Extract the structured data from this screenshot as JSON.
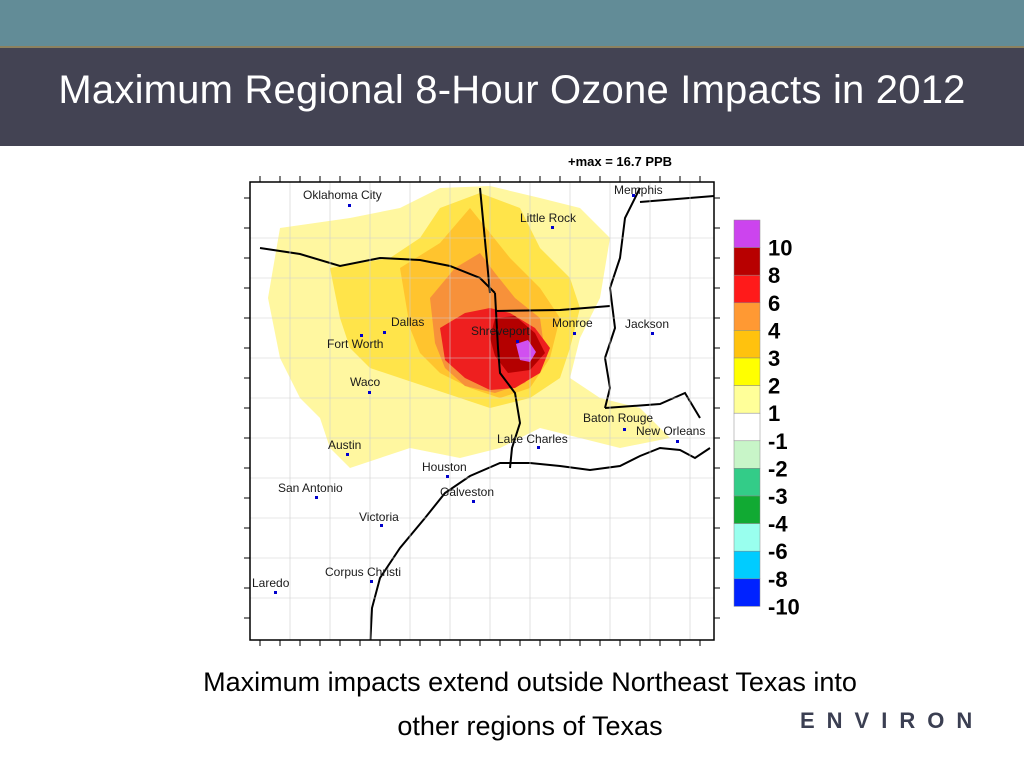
{
  "slide": {
    "title": "Maximum Regional 8-Hour Ozone Impacts in 2012",
    "caption_line1": "Maximum impacts extend outside Northeast Texas into",
    "caption_line2": "other regions of Texas",
    "logo_text": "ENVIRON"
  },
  "map": {
    "max_label": "+max = 16.7 PPB",
    "cities": [
      {
        "name": "Oklahoma City"
      },
      {
        "name": "Little Rock"
      },
      {
        "name": "Memphis"
      },
      {
        "name": "Dallas"
      },
      {
        "name": "Fort Worth"
      },
      {
        "name": "Shreveport"
      },
      {
        "name": "Monroe"
      },
      {
        "name": "Jackson"
      },
      {
        "name": "Waco"
      },
      {
        "name": "Baton Rouge"
      },
      {
        "name": "New Orleans"
      },
      {
        "name": "Lake Charles"
      },
      {
        "name": "Austin"
      },
      {
        "name": "Houston"
      },
      {
        "name": "San Antonio"
      },
      {
        "name": "Galveston"
      },
      {
        "name": "Victoria"
      },
      {
        "name": "Corpus Christi"
      },
      {
        "name": "Laredo"
      }
    ],
    "legend": {
      "labels": [
        "10",
        "8",
        "6",
        "4",
        "3",
        "2",
        "1",
        "-1",
        "-2",
        "-3",
        "-4",
        "-6",
        "-8",
        "-10"
      ],
      "colors": [
        "#cc44ee",
        "#b80000",
        "#ff1a1a",
        "#ff9933",
        "#ffc20e",
        "#ffff00",
        "#ffff99",
        "#ffffff",
        "#c8f5c8",
        "#33cc88",
        "#11aa33",
        "#99ffee",
        "#00ccff",
        "#0022ff"
      ]
    },
    "colors": {
      "yellow_light": "#fff7a0",
      "yellow": "#ffe44a",
      "orange_light": "#ffc42e",
      "orange": "#f7913a",
      "red": "#ee1f1f",
      "dark_red": "#b40000",
      "magenta": "#d050f0",
      "border": "#000000",
      "county": "#c8c8c8",
      "city_marker": "#0000cc"
    }
  }
}
